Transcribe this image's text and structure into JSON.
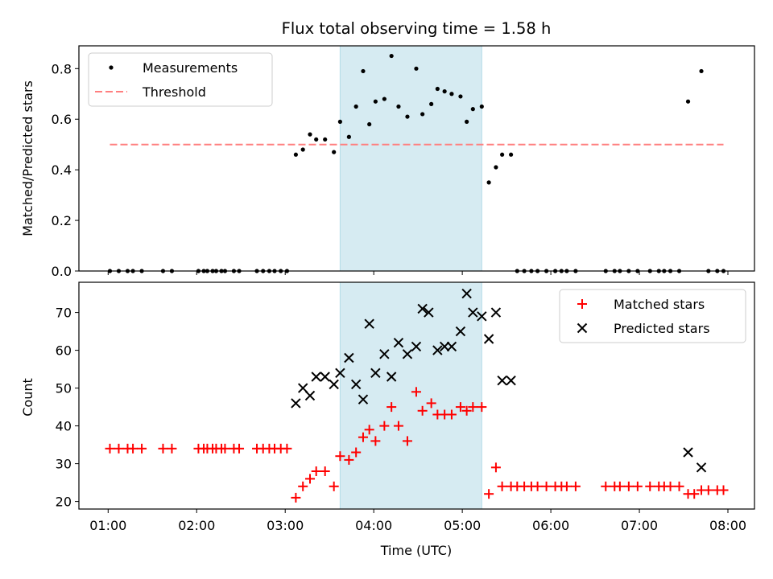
{
  "chart_data": [
    {
      "type": "scatter",
      "title": "Flux total observing time = 1.58 h",
      "ylabel": "Matched/Predicted stars",
      "xlabel": "",
      "xlim": [
        0.67,
        8.3
      ],
      "ylim": [
        0,
        0.89
      ],
      "yticks": [
        0.0,
        0.2,
        0.4,
        0.6,
        0.8
      ],
      "ytick_labels": [
        "0.0",
        "0.2",
        "0.4",
        "0.6",
        "0.8"
      ],
      "shaded_x": [
        3.62,
        5.22
      ],
      "shaded_color": "#add8e6",
      "legend_position": "top-left",
      "series": [
        {
          "name": "Measurements",
          "kind": "points",
          "color": "#000000",
          "x": [
            1.02,
            1.12,
            1.22,
            1.28,
            1.38,
            1.62,
            1.72,
            2.02,
            2.08,
            2.12,
            2.18,
            2.22,
            2.28,
            2.32,
            2.42,
            2.48,
            2.68,
            2.75,
            2.82,
            2.88,
            2.95,
            3.02,
            3.12,
            3.2,
            3.28,
            3.35,
            3.45,
            3.55,
            3.62,
            3.72,
            3.8,
            3.88,
            3.95,
            4.02,
            4.12,
            4.2,
            4.28,
            4.38,
            4.48,
            4.55,
            4.65,
            4.72,
            4.8,
            4.88,
            4.98,
            5.05,
            5.12,
            5.22,
            5.3,
            5.38,
            5.45,
            5.55,
            5.62,
            5.7,
            5.78,
            5.85,
            5.95,
            6.05,
            6.12,
            6.18,
            6.28,
            6.62,
            6.72,
            6.78,
            6.88,
            6.98,
            7.12,
            7.22,
            7.28,
            7.35,
            7.45,
            7.55,
            7.7,
            7.78,
            7.88,
            7.95
          ],
          "y": [
            0,
            0,
            0,
            0,
            0,
            0,
            0,
            0,
            0,
            0,
            0,
            0,
            0,
            0,
            0,
            0,
            0,
            0,
            0,
            0,
            0,
            0,
            0.46,
            0.48,
            0.54,
            0.52,
            0.52,
            0.47,
            0.59,
            0.53,
            0.65,
            0.79,
            0.58,
            0.67,
            0.68,
            0.85,
            0.65,
            0.61,
            0.8,
            0.62,
            0.66,
            0.72,
            0.71,
            0.7,
            0.69,
            0.59,
            0.64,
            0.65,
            0.35,
            0.41,
            0.46,
            0.46,
            0,
            0,
            0,
            0,
            0,
            0,
            0,
            0,
            0,
            0,
            0,
            0,
            0,
            0,
            0,
            0,
            0,
            0,
            0,
            0.67,
            0.79,
            0,
            0,
            0
          ]
        },
        {
          "name": "Threshold",
          "kind": "line",
          "color": "#ff7f7f",
          "x": [
            1.02,
            7.95
          ],
          "y": [
            0.5,
            0.5
          ]
        }
      ]
    },
    {
      "type": "scatter",
      "title": "",
      "ylabel": "Count",
      "xlabel": "Time (UTC)",
      "xlim": [
        0.67,
        8.3
      ],
      "ylim": [
        18,
        78
      ],
      "yticks": [
        20,
        30,
        40,
        50,
        60,
        70
      ],
      "ytick_labels": [
        "20",
        "30",
        "40",
        "50",
        "60",
        "70"
      ],
      "xticks": [
        1,
        2,
        3,
        4,
        5,
        6,
        7,
        8
      ],
      "xtick_labels": [
        "01:00",
        "02:00",
        "03:00",
        "04:00",
        "05:00",
        "06:00",
        "07:00",
        "08:00"
      ],
      "shaded_x": [
        3.62,
        5.22
      ],
      "shaded_color": "#add8e6",
      "legend_position": "top-right",
      "series": [
        {
          "name": "Matched stars",
          "kind": "plus",
          "color": "#ff0000",
          "x": [
            1.02,
            1.12,
            1.22,
            1.28,
            1.38,
            1.62,
            1.72,
            2.02,
            2.08,
            2.12,
            2.18,
            2.22,
            2.28,
            2.32,
            2.42,
            2.48,
            2.68,
            2.75,
            2.82,
            2.88,
            2.95,
            3.02,
            3.12,
            3.2,
            3.28,
            3.35,
            3.45,
            3.55,
            3.62,
            3.72,
            3.8,
            3.88,
            3.95,
            4.02,
            4.12,
            4.2,
            4.28,
            4.38,
            4.48,
            4.55,
            4.65,
            4.72,
            4.8,
            4.88,
            4.98,
            5.05,
            5.12,
            5.22,
            5.3,
            5.38,
            5.45,
            5.55,
            5.62,
            5.7,
            5.78,
            5.85,
            5.95,
            6.05,
            6.12,
            6.18,
            6.28,
            6.62,
            6.72,
            6.78,
            6.88,
            6.98,
            7.12,
            7.22,
            7.28,
            7.35,
            7.45,
            7.55,
            7.62,
            7.7,
            7.78,
            7.88,
            7.95
          ],
          "y": [
            34,
            34,
            34,
            34,
            34,
            34,
            34,
            34,
            34,
            34,
            34,
            34,
            34,
            34,
            34,
            34,
            34,
            34,
            34,
            34,
            34,
            34,
            21,
            24,
            26,
            28,
            28,
            24,
            32,
            31,
            33,
            37,
            39,
            36,
            40,
            45,
            40,
            36,
            49,
            44,
            46,
            43,
            43,
            43,
            45,
            44,
            45,
            45,
            22,
            29,
            24,
            24,
            24,
            24,
            24,
            24,
            24,
            24,
            24,
            24,
            24,
            24,
            24,
            24,
            24,
            24,
            24,
            24,
            24,
            24,
            24,
            22,
            22,
            23,
            23,
            23,
            23
          ]
        },
        {
          "name": "Predicted stars",
          "kind": "x",
          "color": "#000000",
          "x": [
            3.12,
            3.2,
            3.28,
            3.35,
            3.45,
            3.55,
            3.62,
            3.72,
            3.8,
            3.88,
            3.95,
            4.02,
            4.12,
            4.2,
            4.28,
            4.38,
            4.48,
            4.55,
            4.62,
            4.72,
            4.8,
            4.88,
            4.98,
            5.05,
            5.12,
            5.22,
            5.3,
            5.38,
            5.45,
            5.55,
            7.55,
            7.7
          ],
          "y": [
            46,
            50,
            48,
            53,
            53,
            51,
            54,
            58,
            51,
            47,
            67,
            54,
            59,
            53,
            62,
            59,
            61,
            71,
            70,
            60,
            61,
            61,
            65,
            75,
            70,
            69,
            63,
            70,
            52,
            52,
            33,
            29
          ]
        }
      ]
    }
  ]
}
